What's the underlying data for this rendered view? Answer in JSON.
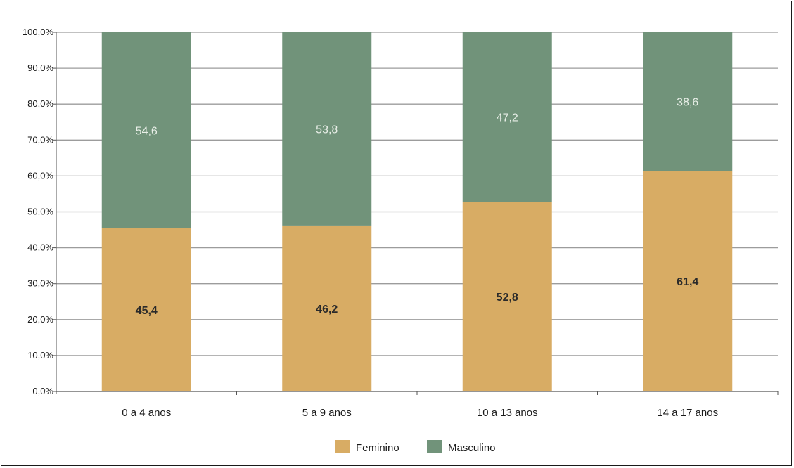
{
  "chart_data": {
    "type": "bar",
    "stacked": true,
    "categories": [
      "0 a 4 anos",
      "5 a 9 anos",
      "10 a 13 anos",
      "14 a 17 anos"
    ],
    "series": [
      {
        "name": "Feminino",
        "values": [
          45.4,
          46.2,
          52.8,
          61.4
        ],
        "labels": [
          "45,4",
          "46,2",
          "52,8",
          "61,4"
        ],
        "color": "#d8ac64"
      },
      {
        "name": "Masculino",
        "values": [
          54.6,
          53.8,
          47.2,
          38.6
        ],
        "labels": [
          "54,6",
          "53,8",
          "47,2",
          "38,6"
        ],
        "color": "#71937a"
      }
    ],
    "ylim": [
      0,
      100
    ],
    "yticks": [
      "0,0%",
      "10,0%",
      "20,0%",
      "30,0%",
      "40,0%",
      "50,0%",
      "60,0%",
      "70,0%",
      "80,0%",
      "90,0%",
      "100,0%"
    ],
    "grid": true,
    "legend_position": "bottom"
  }
}
